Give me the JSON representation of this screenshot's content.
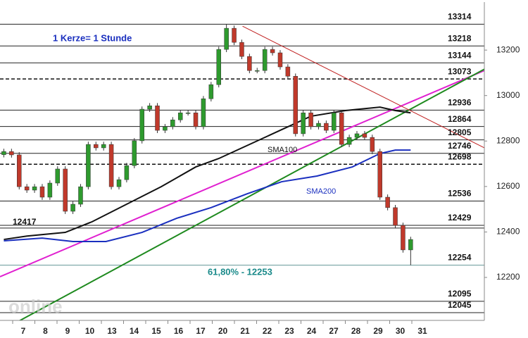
{
  "chart_data": {
    "type": "candlestick",
    "annotation": "1 Kerze= 1 Stunde",
    "watermark": "online",
    "categories": [
      "7",
      "8",
      "9",
      "10",
      "13",
      "14",
      "15",
      "16",
      "17",
      "20",
      "21",
      "22",
      "23",
      "24",
      "27",
      "28",
      "29",
      "30",
      "31"
    ],
    "xlim": [
      -0.5,
      62.6
    ],
    "ylim": [
      12011,
      13411
    ],
    "yticks": [
      13200,
      13000,
      12800,
      12600,
      12400,
      12200
    ],
    "colors": {
      "up": "#2e9a2e",
      "down": "#c0392b",
      "wick": "#333333"
    },
    "open": [
      12740,
      12754,
      12739,
      12599,
      12584,
      12599,
      12553,
      12615,
      12677,
      12491,
      12522,
      12599,
      12785,
      12770,
      12785,
      12599,
      12630,
      12692,
      12801,
      12940,
      12955,
      12847,
      12863,
      12893,
      12924,
      12924,
      12863,
      12986,
      13048,
      13203,
      13296,
      13234,
      13172,
      13110,
      13110,
      13203,
      13188,
      13126,
      13085,
      12832,
      12924,
      12863,
      12878,
      12847,
      12924,
      12785,
      12816,
      12832,
      12816,
      12754,
      12553,
      12507,
      12429,
      12321
    ],
    "high": [
      12766,
      12766,
      12751,
      12611,
      12611,
      12611,
      12627,
      12689,
      12689,
      12534,
      12611,
      12797,
      12797,
      12797,
      12797,
      12642,
      12704,
      12813,
      12952,
      12967,
      12967,
      12875,
      12905,
      12936,
      12936,
      12936,
      12998,
      13060,
      13215,
      13314,
      13308,
      13246,
      13184,
      13122,
      13215,
      13215,
      13200,
      13138,
      13097,
      12936,
      12936,
      12890,
      12890,
      12936,
      12936,
      12828,
      12844,
      12844,
      12828,
      12766,
      12565,
      12519,
      12441,
      12379
    ],
    "low": [
      12728,
      12727,
      12587,
      12572,
      12572,
      12541,
      12541,
      12603,
      12479,
      12479,
      12510,
      12587,
      12758,
      12758,
      12587,
      12587,
      12618,
      12680,
      12789,
      12928,
      12835,
      12835,
      12851,
      12881,
      12912,
      12851,
      12851,
      12974,
      13036,
      13191,
      13222,
      13160,
      13098,
      13098,
      13098,
      13176,
      13114,
      13073,
      12820,
      12820,
      12851,
      12851,
      12835,
      12835,
      12773,
      12773,
      12804,
      12804,
      12742,
      12541,
      12495,
      12417,
      12309,
      12254
    ],
    "close": [
      12754,
      12739,
      12599,
      12584,
      12599,
      12553,
      12615,
      12677,
      12491,
      12522,
      12599,
      12785,
      12770,
      12785,
      12599,
      12630,
      12692,
      12801,
      12940,
      12955,
      12847,
      12863,
      12893,
      12924,
      12924,
      12863,
      12986,
      13048,
      13203,
      13296,
      13234,
      13172,
      13110,
      13110,
      13203,
      13188,
      13126,
      13085,
      12832,
      12924,
      12863,
      12878,
      12847,
      12924,
      12785,
      12816,
      12832,
      12816,
      12754,
      12553,
      12507,
      12429,
      12321,
      12367
    ],
    "series": [
      {
        "name": "SMA100",
        "color": "#111111",
        "x": [
          0,
          3,
          8,
          11.5,
          16,
          20.5,
          25,
          28,
          32,
          36,
          40,
          44.5,
          49,
          51,
          53
        ],
        "values": [
          12367,
          12382,
          12398,
          12445,
          12522,
          12599,
          12686,
          12723,
          12785,
          12847,
          12909,
          12934,
          12949,
          12934,
          12924
        ]
      },
      {
        "name": "SMA200",
        "color": "#1a2fbf",
        "x": [
          0,
          5,
          9,
          13.3,
          18,
          22.5,
          27,
          31.7,
          36.2,
          40.8,
          45.4,
          49,
          51,
          53
        ],
        "values": [
          12361,
          12373,
          12358,
          12358,
          12398,
          12460,
          12507,
          12568,
          12621,
          12646,
          12686,
          12745,
          12760,
          12760
        ]
      }
    ],
    "trendlines": [
      {
        "color": "#e020d0",
        "x": [
          -0.5,
          62.6
        ],
        "values": [
          12203,
          13110
        ]
      },
      {
        "color": "#1e8a1e",
        "x": [
          1.3,
          62.6
        ],
        "values": [
          11996,
          13116
        ]
      },
      {
        "color": "#c02020",
        "x": [
          31.1,
          62.6
        ],
        "values": [
          13305,
          12770
        ]
      }
    ],
    "levels": [
      13314,
      13218,
      13144,
      13073,
      12936,
      12864,
      12805,
      12746,
      12698,
      12536,
      12429,
      12254,
      12095,
      12045
    ],
    "level_styles": [
      "solid",
      "solid",
      "solid",
      "dashed",
      "solid",
      "solid",
      "solid",
      "solid",
      "dashed",
      "solid",
      "solid",
      "solid",
      "solid",
      "solid"
    ],
    "left_level": 12417,
    "fib_label": "61,80% - 12253"
  }
}
